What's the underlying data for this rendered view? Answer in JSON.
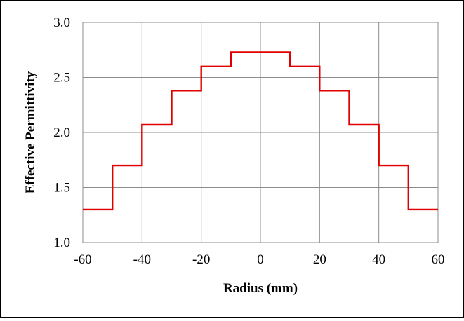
{
  "chart_data": {
    "type": "line",
    "title": "",
    "xlabel": "Radius (mm)",
    "ylabel": "Effective Permittivity",
    "xlim": [
      -60,
      60
    ],
    "ylim": [
      1.0,
      3.0
    ],
    "x_ticks": [
      -60,
      -40,
      -20,
      0,
      20,
      40,
      60
    ],
    "x_tick_labels": [
      "-60",
      "-40",
      "-20",
      "0",
      "20",
      "40",
      "60"
    ],
    "y_ticks": [
      1.0,
      1.5,
      2.0,
      2.5,
      3.0
    ],
    "y_tick_labels": [
      "1.0",
      "1.5",
      "2.0",
      "2.5",
      "3.0"
    ],
    "grid": true,
    "legend": "none",
    "series": [
      {
        "color": "#e00000",
        "x": [
          -60,
          -50,
          -50,
          -40,
          -40,
          -30,
          -30,
          -20,
          -20,
          -10,
          -10,
          10,
          10,
          20,
          20,
          30,
          30,
          40,
          40,
          50,
          50,
          60
        ],
        "y": [
          1.3,
          1.3,
          1.7,
          1.7,
          2.07,
          2.07,
          2.38,
          2.38,
          2.6,
          2.6,
          2.73,
          2.73,
          2.6,
          2.6,
          2.38,
          2.38,
          2.07,
          2.07,
          1.7,
          1.7,
          1.3,
          1.3
        ]
      }
    ]
  }
}
